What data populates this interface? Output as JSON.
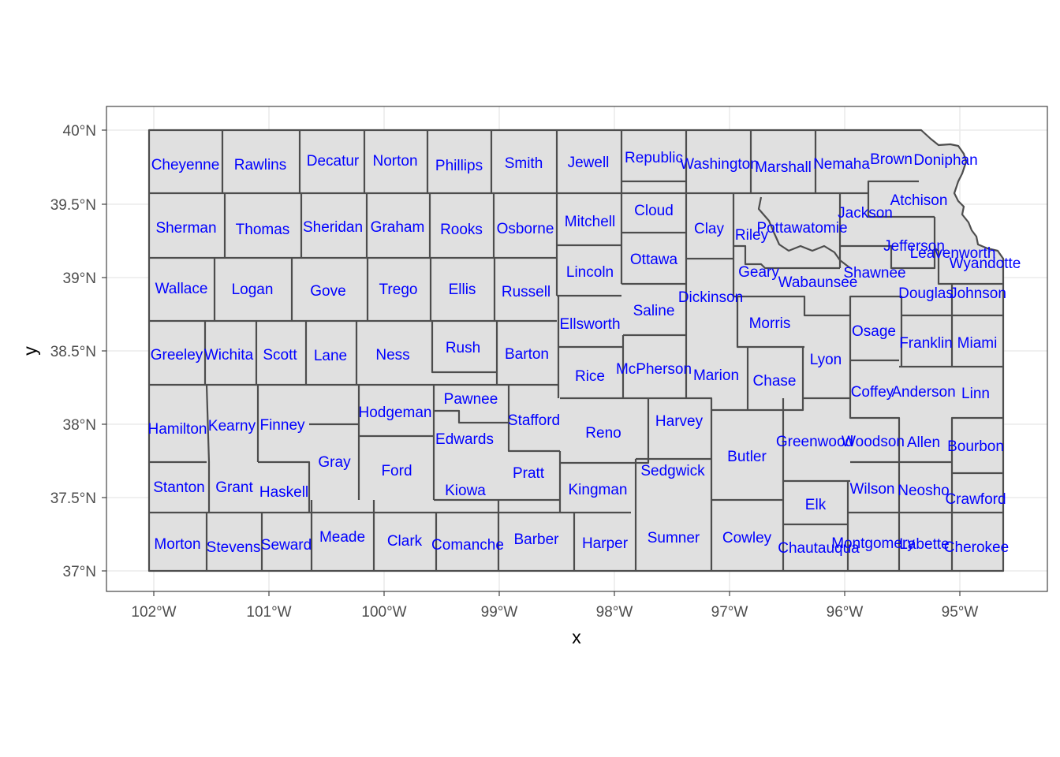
{
  "axes": {
    "x_title": "x",
    "y_title": "y",
    "x_ticks": [
      "102°W",
      "101°W",
      "100°W",
      "99°W",
      "98°W",
      "97°W",
      "96°W",
      "95°W"
    ],
    "y_ticks": [
      "40°N",
      "39.5°N",
      "39°N",
      "38.5°N",
      "38°N",
      "37.5°N",
      "37°N"
    ]
  },
  "colors": {
    "county_fill": "#e0e0e0",
    "county_border": "#4d4d4d",
    "label": "#0000ff",
    "grid": "#ebebeb"
  },
  "counties": [
    "Cheyenne",
    "Rawlins",
    "Decatur",
    "Norton",
    "Phillips",
    "Smith",
    "Jewell",
    "Republic",
    "Washington",
    "Marshall",
    "Nemaha",
    "Brown",
    "Doniphan",
    "Atchison",
    "Jackson",
    "Pottawatomie",
    "Riley",
    "Clay",
    "Cloud",
    "Mitchell",
    "Osborne",
    "Rooks",
    "Graham",
    "Sheridan",
    "Thomas",
    "Sherman",
    "Wallace",
    "Logan",
    "Gove",
    "Trego",
    "Ellis",
    "Russell",
    "Lincoln",
    "Ottawa",
    "Geary",
    "Wabaunsee",
    "Shawnee",
    "Jefferson",
    "Leavenworth",
    "Wyandotte",
    "Johnson",
    "Douglas",
    "Dickinson",
    "Saline",
    "Ellsworth",
    "Morris",
    "Osage",
    "Franklin",
    "Miami",
    "Lyon",
    "Chase",
    "Marion",
    "McPherson",
    "Rice",
    "Barton",
    "Rush",
    "Ness",
    "Lane",
    "Scott",
    "Wichita",
    "Greeley",
    "Hamilton",
    "Kearny",
    "Finney",
    "Hodgeman",
    "Pawnee",
    "Stafford",
    "Edwards",
    "Reno",
    "Harvey",
    "Coffey",
    "Anderson",
    "Linn",
    "Greenwood",
    "Woodson",
    "Allen",
    "Bourbon",
    "Butler",
    "Sedgwick",
    "Kingman",
    "Pratt",
    "Kiowa",
    "Ford",
    "Gray",
    "Haskell",
    "Grant",
    "Stanton",
    "Morton",
    "Stevens",
    "Seward",
    "Meade",
    "Clark",
    "Comanche",
    "Barber",
    "Harper",
    "Sumner",
    "Cowley",
    "Elk",
    "Chautauqua",
    "Montgomery",
    "Labette",
    "Cherokee",
    "Wilson",
    "Neosho",
    "Crawford"
  ]
}
